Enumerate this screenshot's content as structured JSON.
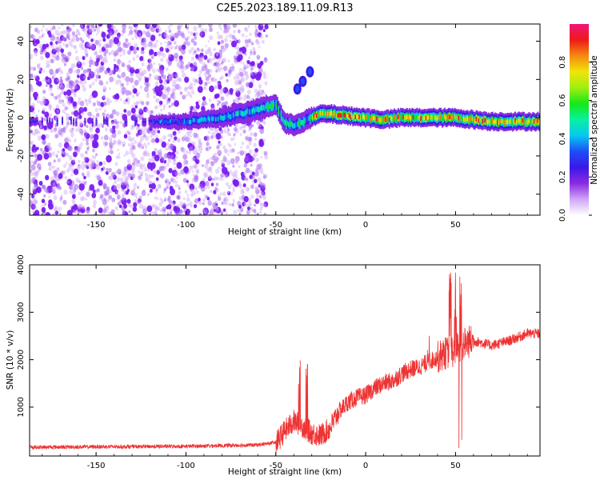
{
  "figure": {
    "title": "C2E5.2023.189.11.09.R13"
  },
  "colors": {
    "snr_line": "#ee3333",
    "noise": "#7a1cf0",
    "colorscale": [
      "#ffffff",
      "#cfa6f6",
      "#8a2be2",
      "#3b18e8",
      "#1d4ef7",
      "#06c8f0",
      "#09f0a0",
      "#15e818",
      "#a0ee10",
      "#f0e40a",
      "#f58a10",
      "#ee1a1a",
      "#f0147a"
    ]
  },
  "chart_data": [
    {
      "type": "heatmap",
      "xlabel": "Height of straight line (km)",
      "ylabel": "Frequency (Hz)",
      "xlim": [
        -187,
        97
      ],
      "ylim": [
        -51,
        49
      ],
      "xticks": [
        -150,
        -100,
        -50,
        0,
        50
      ],
      "yticks": [
        -40,
        -20,
        0,
        20,
        40
      ],
      "grid": false,
      "colorbar": {
        "label": "Normalized spectral amplitude",
        "range": [
          0,
          1
        ],
        "ticks": [
          0.0,
          0.2,
          0.4,
          0.6,
          0.8
        ]
      },
      "features": {
        "noise_region_x": [
          -187,
          -55
        ],
        "main_track": [
          [
            -187,
            -2
          ],
          [
            -120,
            -2
          ],
          [
            -100,
            -2
          ],
          [
            -80,
            0
          ],
          [
            -65,
            3
          ],
          [
            -50,
            7
          ],
          [
            -45,
            -3
          ],
          [
            -40,
            -4
          ],
          [
            -35,
            -2
          ],
          [
            -30,
            0
          ],
          [
            -25,
            2
          ],
          [
            -20,
            2
          ],
          [
            -10,
            1
          ],
          [
            0,
            0
          ],
          [
            10,
            -1
          ],
          [
            20,
            0
          ],
          [
            30,
            0
          ],
          [
            40,
            0
          ],
          [
            50,
            0
          ],
          [
            60,
            -1
          ],
          [
            70,
            -2
          ],
          [
            80,
            -2
          ],
          [
            97,
            -2
          ]
        ],
        "branch_track": [
          [
            -38,
            15
          ],
          [
            -35,
            19
          ],
          [
            -31,
            24
          ]
        ]
      }
    },
    {
      "type": "line",
      "xlabel": "Height of straight line (km)",
      "ylabel": "SNR (10 * v/v)",
      "xlim": [
        -187,
        97
      ],
      "ylim": [
        -30,
        4000
      ],
      "xticks": [
        -150,
        -100,
        -50,
        0,
        50
      ],
      "yticks": [
        1000,
        2000,
        3000,
        4000
      ],
      "grid": false,
      "series": [
        {
          "baseline": [
            [
              -187,
              130
            ],
            [
              -150,
              140
            ],
            [
              -100,
              150
            ],
            [
              -60,
              180
            ],
            [
              -50,
              230
            ],
            [
              -45,
              500
            ],
            [
              -40,
              700
            ],
            [
              -35,
              600
            ],
            [
              -30,
              450
            ],
            [
              -25,
              400
            ],
            [
              -20,
              550
            ],
            [
              -15,
              900
            ],
            [
              -10,
              1100
            ],
            [
              -5,
              1200
            ],
            [
              0,
              1250
            ],
            [
              5,
              1400
            ],
            [
              10,
              1500
            ],
            [
              15,
              1550
            ],
            [
              20,
              1700
            ],
            [
              25,
              1800
            ],
            [
              30,
              1850
            ],
            [
              35,
              1950
            ],
            [
              40,
              2050
            ],
            [
              45,
              2150
            ],
            [
              50,
              2200
            ],
            [
              55,
              2350
            ],
            [
              60,
              2400
            ],
            [
              70,
              2300
            ],
            [
              80,
              2400
            ],
            [
              90,
              2550
            ],
            [
              97,
              2550
            ]
          ],
          "peaks": [
            [
              47,
              4000
            ],
            [
              50,
              4000
            ],
            [
              53,
              3800
            ],
            [
              -37,
              2000
            ],
            [
              -33,
              2000
            ],
            [
              35,
              2600
            ]
          ]
        }
      ]
    }
  ]
}
